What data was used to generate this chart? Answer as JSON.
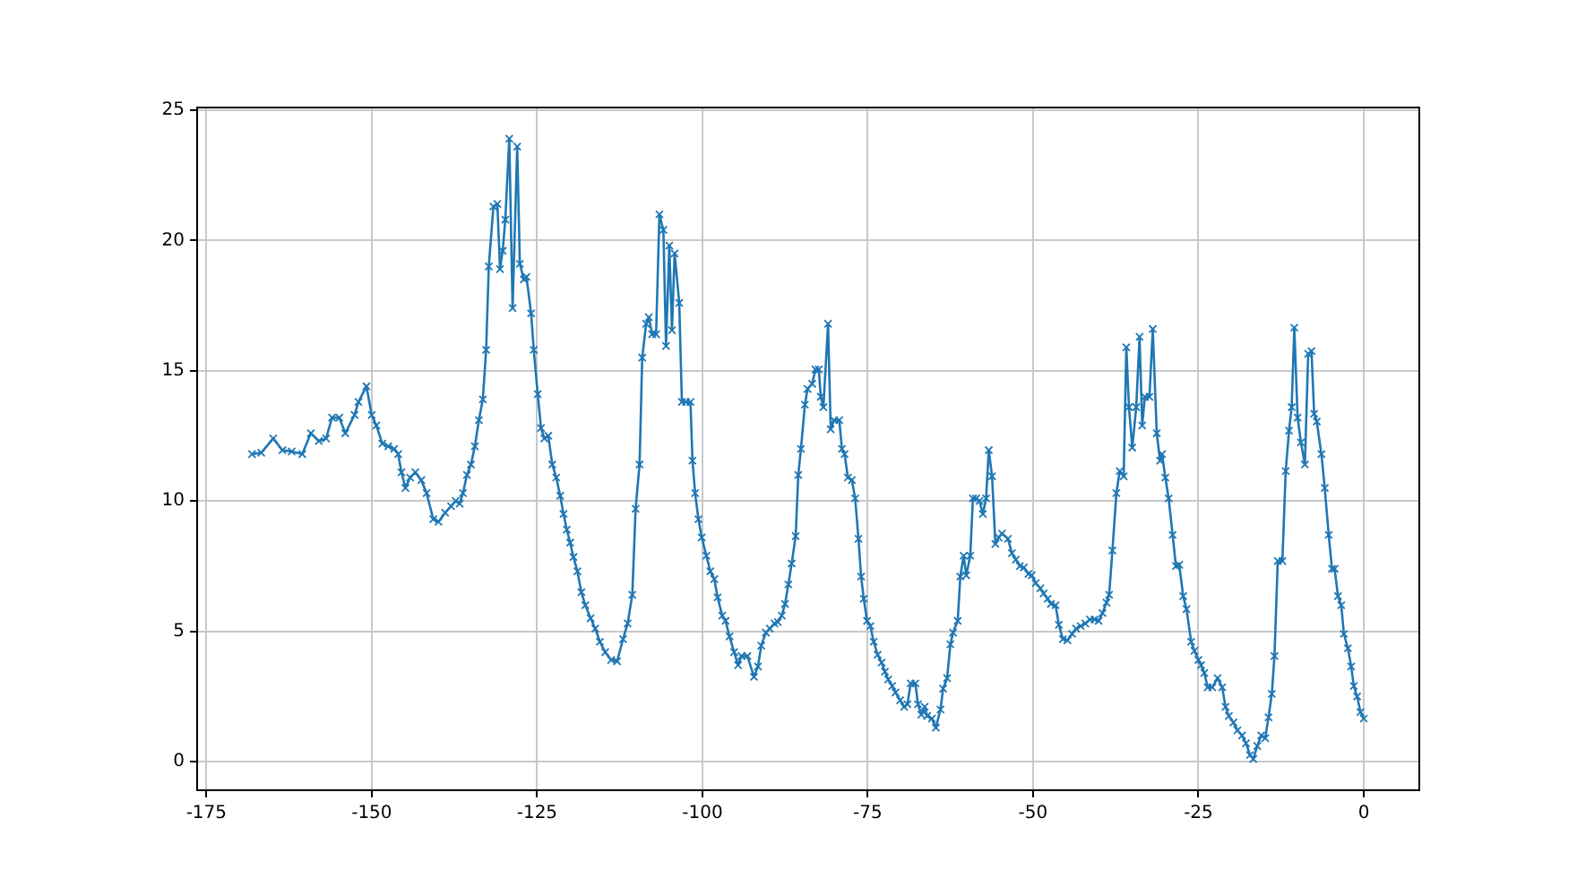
{
  "chart_data": {
    "type": "line",
    "marker": "cross",
    "line_style": "solid",
    "grid": true,
    "xlim": [
      -176.4,
      8.4
    ],
    "ylim": [
      -1.1,
      25.1
    ],
    "xticks": [
      -175,
      -150,
      -125,
      -100,
      -75,
      -50,
      -25,
      0
    ],
    "yticks": [
      0,
      5,
      10,
      15,
      20,
      25
    ],
    "series": [
      {
        "color": "#1f77b4",
        "x": [
          -168.1,
          -166.7,
          -164.9,
          -163.5,
          -162.1,
          -160.5,
          -159.2,
          -158,
          -156.9,
          -156,
          -154.9,
          -154,
          -152.6,
          -152,
          -150.8,
          -150,
          -149.3,
          -148.4,
          -147.5,
          -146.6,
          -146,
          -145.5,
          -144.9,
          -144.2,
          -143.4,
          -142.5,
          -141.7,
          -140.7,
          -139.9,
          -138.9,
          -138,
          -137.3,
          -136.7,
          -136.2,
          -135.6,
          -135,
          -134.4,
          -133.8,
          -133.2,
          -132.7,
          -132.3,
          -131.6,
          -131,
          -130.6,
          -130.2,
          -129.8,
          -129.2,
          -128.7,
          -128,
          -127.6,
          -127,
          -126.6,
          -125.9,
          -125.5,
          -124.9,
          -124.4,
          -123.9,
          -123.3,
          -122.7,
          -122.1,
          -121.5,
          -121,
          -120.5,
          -120,
          -119.5,
          -118.9,
          -118.3,
          -117.7,
          -116.9,
          -116.2,
          -115.5,
          -114.7,
          -113.8,
          -112.9,
          -112,
          -111.3,
          -110.6,
          -110.1,
          -109.5,
          -109.1,
          -108.5,
          -108.1,
          -107.6,
          -107,
          -106.5,
          -105.9,
          -105.5,
          -105,
          -104.6,
          -104.2,
          -103.5,
          -103.1,
          -102.5,
          -101.8,
          -101.5,
          -101.1,
          -100.6,
          -100.1,
          -99.4,
          -98.8,
          -98.2,
          -97.7,
          -97,
          -96.5,
          -95.9,
          -95.2,
          -94.6,
          -94.1,
          -93.2,
          -92.2,
          -91.6,
          -91.1,
          -90.4,
          -89.8,
          -89.1,
          -88.6,
          -88,
          -87.5,
          -87,
          -86.5,
          -85.9,
          -85.5,
          -85.1,
          -84.5,
          -84.1,
          -83.4,
          -82.9,
          -82.4,
          -82.1,
          -81.7,
          -81,
          -80.6,
          -80.1,
          -79.3,
          -78.9,
          -78.5,
          -78,
          -77.4,
          -76.9,
          -76.4,
          -76,
          -75.6,
          -75.1,
          -74.6,
          -74.1,
          -73.5,
          -72.9,
          -72.4,
          -71.9,
          -71.3,
          -70.8,
          -70.1,
          -69.5,
          -69,
          -68.5,
          -67.8,
          -67.4,
          -66.9,
          -66.4,
          -66,
          -65.3,
          -64.7,
          -64,
          -63.6,
          -63,
          -62.5,
          -62.1,
          -61.4,
          -61,
          -60.5,
          -60.1,
          -59.5,
          -59.1,
          -58.6,
          -58.1,
          -57.6,
          -57.1,
          -56.7,
          -56.2,
          -55.7,
          -55.2,
          -54.7,
          -53.8,
          -53.2,
          -52.6,
          -52,
          -51.4,
          -50.7,
          -50.2,
          -49.6,
          -48.9,
          -48.4,
          -47.8,
          -47.3,
          -46.6,
          -46.1,
          -45.5,
          -44.8,
          -44.1,
          -43.5,
          -42.8,
          -42.1,
          -41.4,
          -40.7,
          -40.1,
          -39.5,
          -38.9,
          -38.5,
          -38,
          -37.4,
          -36.9,
          -36.3,
          -35.9,
          -35.5,
          -35,
          -34.4,
          -33.9,
          -33.5,
          -33.1,
          -32.4,
          -31.9,
          -31.3,
          -30.8,
          -30.5,
          -30,
          -29.5,
          -28.9,
          -28.4,
          -27.9,
          -27.3,
          -26.8,
          -26.1,
          -25.6,
          -25,
          -24.6,
          -24.1,
          -23.6,
          -22.9,
          -22.1,
          -21.4,
          -20.9,
          -20.4,
          -19.7,
          -19.1,
          -18.4,
          -17.8,
          -17.2,
          -16.7,
          -16.1,
          -15.5,
          -14.9,
          -14.4,
          -13.9,
          -13.5,
          -13,
          -12.3,
          -11.8,
          -11.3,
          -10.9,
          -10.5,
          -10,
          -9.5,
          -8.9,
          -8.4,
          -7.9,
          -7.5,
          -7.1,
          -6.4,
          -5.9,
          -5.3,
          -4.8,
          -4.4,
          -3.9,
          -3.4,
          -3,
          -2.4,
          -1.9,
          -1.5,
          -1,
          -0.5,
          0
        ],
        "values": [
          11.8,
          11.85,
          12.4,
          11.95,
          11.9,
          11.8,
          12.6,
          12.3,
          12.4,
          13.2,
          13.2,
          12.6,
          13.3,
          13.8,
          14.4,
          13.3,
          12.9,
          12.2,
          12.1,
          12.0,
          11.8,
          11.1,
          10.5,
          10.9,
          11.1,
          10.8,
          10.3,
          9.3,
          9.2,
          9.55,
          9.8,
          10.0,
          9.9,
          10.3,
          11.0,
          11.4,
          12.1,
          13.1,
          13.9,
          15.8,
          19.0,
          21.3,
          21.4,
          18.9,
          19.6,
          20.8,
          23.9,
          17.4,
          23.6,
          19.1,
          18.5,
          18.6,
          17.2,
          15.8,
          14.1,
          12.8,
          12.4,
          12.5,
          11.4,
          10.9,
          10.2,
          9.5,
          8.9,
          8.4,
          7.85,
          7.3,
          6.5,
          6.0,
          5.5,
          5.1,
          4.6,
          4.2,
          3.9,
          3.85,
          4.7,
          5.3,
          6.4,
          9.7,
          11.4,
          15.5,
          16.8,
          17.05,
          16.4,
          16.4,
          21.0,
          20.4,
          15.95,
          19.8,
          16.55,
          19.5,
          17.6,
          13.8,
          13.8,
          13.8,
          11.55,
          10.3,
          9.3,
          8.6,
          7.9,
          7.3,
          7.0,
          6.3,
          5.6,
          5.4,
          4.8,
          4.2,
          3.7,
          4.05,
          4.05,
          3.25,
          3.65,
          4.45,
          4.95,
          5.1,
          5.3,
          5.35,
          5.6,
          6.05,
          6.8,
          7.6,
          8.65,
          11.0,
          12.0,
          13.7,
          14.3,
          14.5,
          15.05,
          15.05,
          14.0,
          13.6,
          16.8,
          12.75,
          13.1,
          13.1,
          12.0,
          11.8,
          10.9,
          10.8,
          10.1,
          8.55,
          7.1,
          6.25,
          5.4,
          5.2,
          4.6,
          4.1,
          3.8,
          3.45,
          3.15,
          2.9,
          2.65,
          2.35,
          2.1,
          2.2,
          3.0,
          3.0,
          2.2,
          1.8,
          2.1,
          1.75,
          1.65,
          1.3,
          2.0,
          2.8,
          3.2,
          4.5,
          4.95,
          5.4,
          7.1,
          7.9,
          7.15,
          7.9,
          10.1,
          10.1,
          10.0,
          9.5,
          10.1,
          11.95,
          10.95,
          8.35,
          8.6,
          8.75,
          8.55,
          8.0,
          7.75,
          7.5,
          7.45,
          7.2,
          7.15,
          6.85,
          6.65,
          6.45,
          6.25,
          6.05,
          6.0,
          5.25,
          4.7,
          4.65,
          4.9,
          5.1,
          5.2,
          5.3,
          5.45,
          5.45,
          5.4,
          5.7,
          6.1,
          6.4,
          8.1,
          10.3,
          11.15,
          10.95,
          15.9,
          13.6,
          12.05,
          13.6,
          16.3,
          12.9,
          14.0,
          14.0,
          16.6,
          12.6,
          11.55,
          11.8,
          10.9,
          10.1,
          8.7,
          7.5,
          7.55,
          6.35,
          5.85,
          4.6,
          4.25,
          3.9,
          3.7,
          3.4,
          2.85,
          2.85,
          3.2,
          2.85,
          2.1,
          1.75,
          1.5,
          1.2,
          1.0,
          0.7,
          0.25,
          0.1,
          0.6,
          1.0,
          0.9,
          1.7,
          2.6,
          4.05,
          7.7,
          7.7,
          11.15,
          12.7,
          13.6,
          16.65,
          13.2,
          12.25,
          11.4,
          15.65,
          15.75,
          13.35,
          13.05,
          11.8,
          10.5,
          8.7,
          7.4,
          7.4,
          6.35,
          6.0,
          4.9,
          4.35,
          3.65,
          2.9,
          2.5,
          1.9,
          1.65
        ]
      }
    ]
  }
}
